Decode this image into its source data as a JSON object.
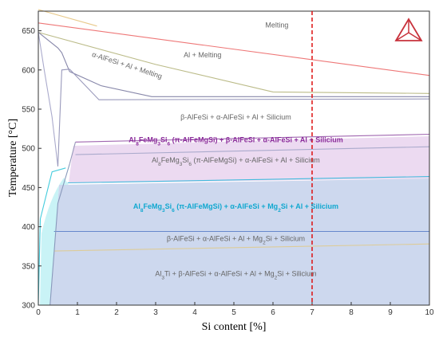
{
  "chart_data": {
    "type": "line",
    "title": "",
    "xlabel": "Si content [%]",
    "ylabel": "Temperature [°C]",
    "xlim": [
      0,
      10
    ],
    "ylim": [
      300,
      675
    ],
    "xticks": [
      "0",
      "1",
      "2",
      "3",
      "4",
      "5",
      "6",
      "7",
      "8",
      "9",
      "10"
    ],
    "yticks": [
      "300",
      "350",
      "400",
      "450",
      "500",
      "550",
      "600",
      "650"
    ],
    "marker_line": {
      "x": 7,
      "color": "#dd1111",
      "style": "dashed"
    },
    "series": [
      {
        "color": "#ee7777",
        "points": [
          [
            0,
            660
          ],
          [
            10,
            593
          ]
        ]
      },
      {
        "color": "#e8c98a",
        "points": [
          [
            0,
            677
          ],
          [
            1.5,
            656
          ]
        ]
      },
      {
        "color": "#bbbb88",
        "points": [
          [
            0,
            648
          ],
          [
            3,
            607
          ],
          [
            6,
            572
          ],
          [
            10,
            570
          ]
        ]
      },
      {
        "color": "#8888aa",
        "points": [
          [
            0,
            648
          ],
          [
            0.5,
            628
          ],
          [
            0.6,
            622
          ],
          [
            0.8,
            598
          ],
          [
            1.6,
            580
          ],
          [
            2.9,
            566
          ],
          [
            10,
            566
          ]
        ]
      },
      {
        "color": "#9999bb",
        "points": [
          [
            0.8,
            601
          ],
          [
            1.55,
            562
          ],
          [
            10,
            563
          ]
        ]
      },
      {
        "color": "#aaaacc",
        "points": [
          [
            0,
            648
          ],
          [
            0.15,
            600
          ],
          [
            0.35,
            540
          ],
          [
            0.5,
            477
          ]
        ]
      },
      {
        "color": "#9999bb",
        "points": [
          [
            0.5,
            477
          ],
          [
            0.6,
            600
          ],
          [
            0.8,
            601
          ]
        ]
      },
      {
        "color": "#a066b0",
        "points": [
          [
            0.95,
            508
          ],
          [
            10,
            518
          ]
        ]
      },
      {
        "color": "#9999bb",
        "points": [
          [
            0.8,
            480
          ],
          [
            0.95,
            508
          ]
        ]
      },
      {
        "color": "#aaaacc",
        "points": [
          [
            0.95,
            492
          ],
          [
            10,
            502
          ]
        ]
      },
      {
        "color": "#44bbdd",
        "points": [
          [
            0.75,
            456
          ],
          [
            10,
            464
          ]
        ]
      },
      {
        "color": "#44ccdd",
        "points": [
          [
            0,
            300
          ],
          [
            0.05,
            410
          ],
          [
            0.35,
            470
          ],
          [
            0.7,
            475
          ]
        ]
      },
      {
        "color": "#6688cc",
        "points": [
          [
            0.4,
            394
          ],
          [
            10,
            394
          ]
        ]
      },
      {
        "color": "#ddcc99",
        "points": [
          [
            0.4,
            369
          ],
          [
            10,
            378
          ]
        ]
      },
      {
        "color": "#8899bb",
        "points": [
          [
            0.3,
            300
          ],
          [
            0.5,
            430
          ],
          [
            0.8,
            480
          ]
        ]
      }
    ],
    "regions": [
      {
        "label": "Melting",
        "x": 6.1,
        "y": 654,
        "color": "#666666",
        "bold": false
      },
      {
        "label": "Al + Melting",
        "x": 4.2,
        "y": 616,
        "color": "#666666",
        "bold": false
      },
      {
        "label": "α-AlFeSi + Al + Melting",
        "x": 2.25,
        "y": 603,
        "color": "#666666",
        "bold": false,
        "rotate": 18
      },
      {
        "label": "β-AlFeSi + α-AlFeSi + Al + Silicium",
        "x": 5.05,
        "y": 537,
        "color": "#666666",
        "bold": false
      },
      {
        "label": "Al8FeMg3Si6 (π-AlFeMgSi) + β-AlFeSi + α-AlFeSi + Al + Silicium",
        "x": 5.05,
        "y": 508,
        "color": "#8a2a9a",
        "bold": true
      },
      {
        "label": "Al8FeMg3Si6 (π-AlFeMgSi) + α-AlFeSi + Al + Silicium",
        "x": 5.05,
        "y": 482,
        "color": "#666666",
        "bold": false
      },
      {
        "label": "Al8FeMg3Si6 (π-AlFeMgSi) + α-AlFeSi + Mg2Si + Al + Silicium",
        "x": 5.05,
        "y": 423,
        "color": "#10a8d0",
        "bold": true
      },
      {
        "label": "β-AlFeSi + α-AlFeSi + Al + Mg2Si + Silicium",
        "x": 5.05,
        "y": 382,
        "color": "#666666",
        "bold": false
      },
      {
        "label": "Al3Ti + β-AlFeSi + α-AlFeSi + Al + Mg2Si + Silicium",
        "x": 5.05,
        "y": 337,
        "color": "#666666",
        "bold": false
      }
    ],
    "grid": false,
    "logo": "tetrahedron-logo"
  },
  "colors": {
    "blue_fill": "#c8d4ec",
    "purple_fill": "#ead6f0",
    "cyan_fill": "#c6f2f6",
    "axis": "#333333"
  }
}
